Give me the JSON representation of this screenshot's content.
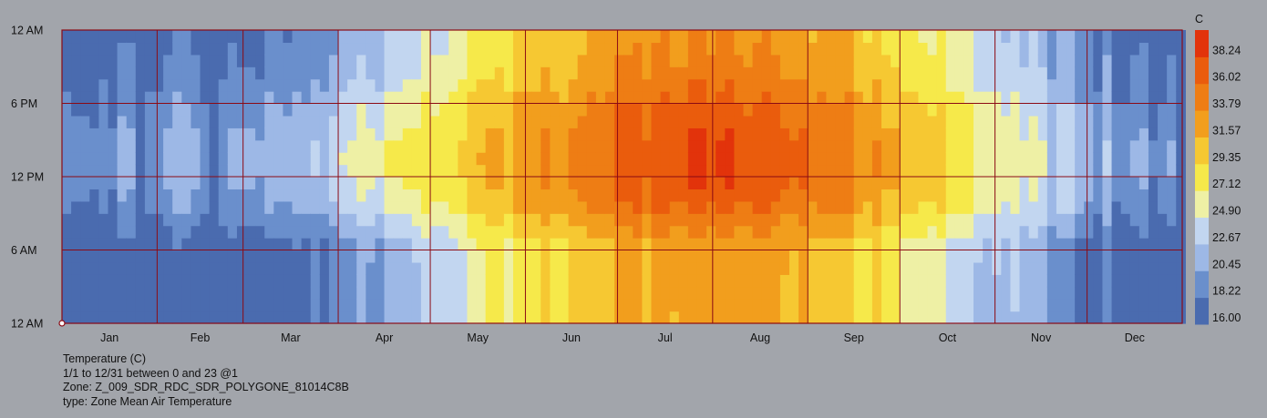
{
  "chart_data": {
    "type": "heatmap",
    "title": "Temperature (C)",
    "x_categories": [
      "Jan",
      "Feb",
      "Mar",
      "Apr",
      "May",
      "Jun",
      "Jul",
      "Aug",
      "Sep",
      "Oct",
      "Nov",
      "Dec"
    ],
    "y_ticks": [
      "12 AM",
      "6 AM",
      "12 PM",
      "6 PM",
      "12 AM"
    ],
    "unit": "C",
    "legend_ticks": [
      "16.00",
      "18.22",
      "20.45",
      "22.67",
      "24.90",
      "27.12",
      "29.35",
      "31.57",
      "33.79",
      "36.02",
      "38.24"
    ],
    "value_range": [
      16.0,
      40.46
    ],
    "color_steps": [
      "#4a6baf",
      "#6a8fcc",
      "#9db8e6",
      "#c2d6f0",
      "#eef0a5",
      "#f6e94a",
      "#f6c832",
      "#f29e1d",
      "#ee7d14",
      "#ea5c0d",
      "#e2330b"
    ],
    "monthly_profile": {
      "months": [
        "Jan",
        "Feb",
        "Mar",
        "Apr",
        "May",
        "Jun",
        "Jul",
        "Aug",
        "Sep",
        "Oct",
        "Nov",
        "Dec"
      ],
      "night_min_c": [
        16.5,
        16.8,
        17.5,
        20.5,
        26.0,
        29.5,
        32.0,
        32.0,
        29.5,
        24.5,
        20.0,
        17.2
      ],
      "day_max_c": [
        21.0,
        21.0,
        22.0,
        26.5,
        31.0,
        34.5,
        38.0,
        37.5,
        34.0,
        29.5,
        24.0,
        21.0
      ]
    },
    "grid": true,
    "legend_position": "right"
  },
  "caption": {
    "line1": "Temperature (C)",
    "line2": "1/1 to 12/31 between 0 and 23 @1",
    "line3": "Zone: Z_009_SDR_RDC_SDR_POLYGONE_81014C8B",
    "line4": "type: Zone Mean Air Temperature"
  },
  "colors": {
    "grid_line": "#8b0a14",
    "background": "#a2a5ab"
  }
}
